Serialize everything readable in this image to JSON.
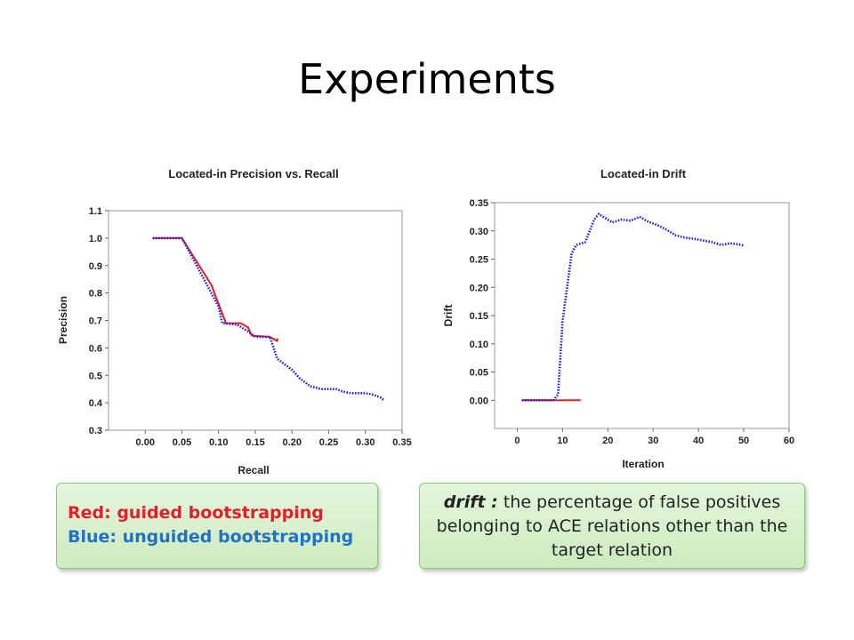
{
  "slide": {
    "title": "Experiments"
  },
  "chart_data": [
    {
      "type": "line",
      "title": "Located-in Precision vs. Recall",
      "xlabel": "Recall",
      "ylabel": "Precision",
      "xlim": [
        -0.05,
        0.35
      ],
      "ylim": [
        0.3,
        1.1
      ],
      "xticks": [
        "0.00",
        "0.05",
        "0.10",
        "0.15",
        "0.20",
        "0.25",
        "0.30",
        "0.35"
      ],
      "xtick_values": [
        0,
        0.05,
        0.1,
        0.15,
        0.2,
        0.25,
        0.3,
        0.35
      ],
      "yticks": [
        "0.3",
        "0.4",
        "0.5",
        "0.6",
        "0.7",
        "0.8",
        "0.9",
        "1.0",
        "1.1"
      ],
      "ytick_values": [
        0.3,
        0.4,
        0.5,
        0.6,
        0.7,
        0.8,
        0.9,
        1.0,
        1.1
      ],
      "series": [
        {
          "color": "#e82020",
          "style": "solid",
          "points": [
            [
              0.01,
              1.0
            ],
            [
              0.05,
              1.0
            ],
            [
              0.09,
              0.83
            ],
            [
              0.11,
              0.69
            ],
            [
              0.13,
              0.69
            ],
            [
              0.14,
              0.675
            ],
            [
              0.145,
              0.645
            ],
            [
              0.17,
              0.64
            ],
            [
              0.18,
              0.625
            ],
            [
              0.18,
              0.635
            ]
          ]
        },
        {
          "color": "#2020d8",
          "style": "dotted",
          "points": [
            [
              0.01,
              1.0
            ],
            [
              0.05,
              1.0
            ],
            [
              0.08,
              0.85
            ],
            [
              0.1,
              0.75
            ],
            [
              0.105,
              0.69
            ],
            [
              0.125,
              0.685
            ],
            [
              0.14,
              0.66
            ],
            [
              0.15,
              0.64
            ],
            [
              0.17,
              0.64
            ],
            [
              0.175,
              0.6
            ],
            [
              0.18,
              0.56
            ],
            [
              0.19,
              0.54
            ],
            [
              0.2,
              0.52
            ],
            [
              0.21,
              0.49
            ],
            [
              0.225,
              0.46
            ],
            [
              0.24,
              0.45
            ],
            [
              0.26,
              0.45
            ],
            [
              0.27,
              0.44
            ],
            [
              0.28,
              0.435
            ],
            [
              0.3,
              0.435
            ],
            [
              0.31,
              0.43
            ],
            [
              0.32,
              0.42
            ],
            [
              0.325,
              0.41
            ]
          ]
        }
      ]
    },
    {
      "type": "line",
      "title": "Located-in Drift",
      "xlabel": "Iteration",
      "ylabel": "Drift",
      "xlim": [
        -5,
        60
      ],
      "ylim": [
        -0.05,
        0.35
      ],
      "xticks": [
        "0",
        "10",
        "20",
        "30",
        "40",
        "50",
        "60"
      ],
      "xtick_values": [
        0,
        10,
        20,
        30,
        40,
        50,
        60
      ],
      "yticks": [
        "0.00",
        "0.05",
        "0.10",
        "0.15",
        "0.20",
        "0.25",
        "0.30",
        "0.35"
      ],
      "ytick_values": [
        0,
        0.05,
        0.1,
        0.15,
        0.2,
        0.25,
        0.3,
        0.35
      ],
      "series": [
        {
          "color": "#e82020",
          "style": "solid",
          "points": [
            [
              1,
              0.0
            ],
            [
              14,
              0.0
            ]
          ]
        },
        {
          "color": "#2020d8",
          "style": "dotted",
          "points": [
            [
              1,
              0.0
            ],
            [
              8,
              0.0
            ],
            [
              9,
              0.01
            ],
            [
              10,
              0.14
            ],
            [
              11,
              0.2
            ],
            [
              12,
              0.26
            ],
            [
              13,
              0.275
            ],
            [
              15,
              0.28
            ],
            [
              16,
              0.3
            ],
            [
              17,
              0.32
            ],
            [
              18,
              0.33
            ],
            [
              19,
              0.325
            ],
            [
              21,
              0.315
            ],
            [
              23,
              0.32
            ],
            [
              25,
              0.318
            ],
            [
              27,
              0.325
            ],
            [
              29,
              0.316
            ],
            [
              31,
              0.31
            ],
            [
              33,
              0.302
            ],
            [
              35,
              0.292
            ],
            [
              37,
              0.288
            ],
            [
              39,
              0.286
            ],
            [
              41,
              0.283
            ],
            [
              43,
              0.28
            ],
            [
              45,
              0.275
            ],
            [
              47,
              0.278
            ],
            [
              49,
              0.276
            ],
            [
              50,
              0.274
            ]
          ]
        }
      ]
    }
  ],
  "legend": {
    "red_label": "Red: guided bootstrapping",
    "blue_label": "Blue: unguided bootstrapping"
  },
  "drift_note": {
    "term": "drift :",
    "text": " the percentage of false positives belonging to ACE relations other than the target relation"
  }
}
